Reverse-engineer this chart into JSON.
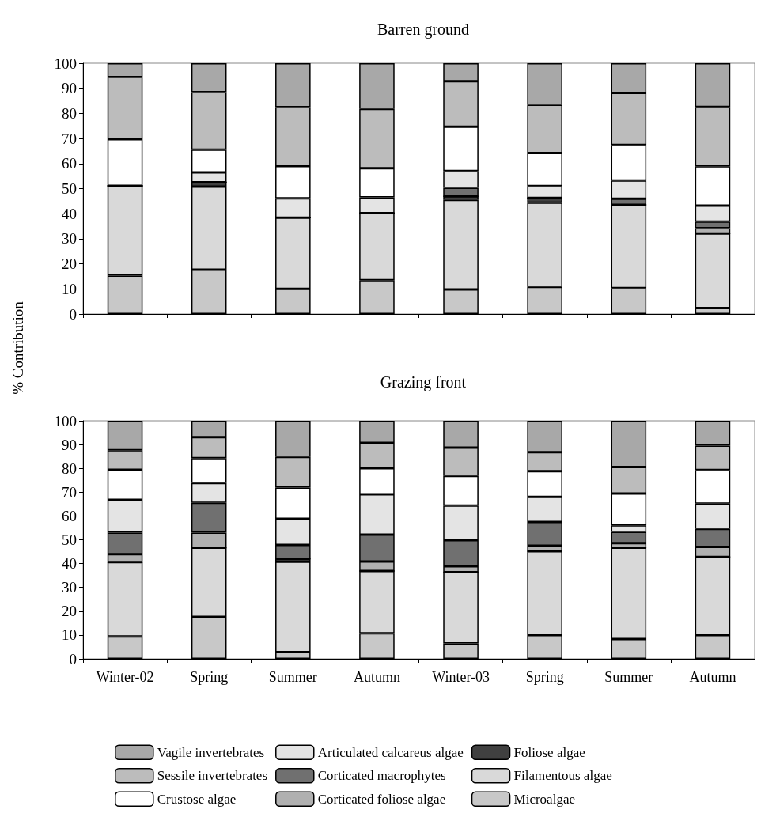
{
  "chart_data": [
    {
      "type": "bar",
      "title": "Barren ground",
      "ylabel": "% Contribution",
      "stacked": true,
      "categories": [
        null,
        null,
        null,
        null,
        null,
        null,
        null,
        null
      ],
      "ylim": [
        0,
        100
      ],
      "yticks": [
        0,
        10,
        20,
        30,
        40,
        50,
        60,
        70,
        80,
        90,
        100
      ],
      "grid": false,
      "legend": false,
      "tick_labels": "y",
      "series": [
        {
          "color": "#c8c8c8",
          "values": [
            15.3,
            17.7,
            10,
            13.5,
            9.8,
            10.8,
            10.3,
            2.4
          ]
        },
        {
          "color": "#d9d9d9",
          "values": [
            35.8,
            33.1,
            28.4,
            26.7,
            35.7,
            33.6,
            33.2,
            29.7
          ]
        },
        {
          "color": "#404040",
          "values": [
            0,
            1.7,
            0,
            0,
            1.4,
            1.9,
            0,
            0
          ]
        },
        {
          "color": "#b0b0b0",
          "values": [
            0,
            0,
            0,
            0,
            0,
            0,
            0,
            2.1
          ]
        },
        {
          "color": "#707070",
          "values": [
            0,
            0,
            0,
            0,
            3.4,
            0,
            2.5,
            2.6
          ]
        },
        {
          "color": "#e4e4e4",
          "values": [
            0,
            4,
            7.7,
            6.3,
            6.7,
            4.7,
            7.2,
            6.4
          ]
        },
        {
          "color": "#ffffff",
          "values": [
            18.6,
            9,
            12.9,
            11.6,
            17.7,
            13.2,
            14.2,
            15.7
          ]
        },
        {
          "color": "#bcbcbc",
          "values": [
            24.8,
            23,
            23.5,
            23.7,
            18.1,
            19.2,
            20.8,
            23.7
          ]
        },
        {
          "color": "#a8a8a8",
          "values": [
            5.5,
            11.5,
            17.5,
            18.2,
            7.2,
            16.6,
            11.8,
            17.4
          ]
        }
      ]
    },
    {
      "type": "bar",
      "title": "Grazing front",
      "stacked": true,
      "categories": [
        "Winter-02",
        "Spring",
        "Summer",
        "Autumn",
        "Winter-03",
        "Spring",
        "Summer",
        "Autumn"
      ],
      "ylim": [
        0,
        100
      ],
      "yticks": [
        0,
        10,
        20,
        30,
        40,
        50,
        60,
        70,
        80,
        90,
        100
      ],
      "grid": false,
      "legend": "bottom",
      "series": [
        {
          "name": "Microalgae",
          "color": "#c8c8c8",
          "values": [
            9.4,
            17.6,
            2.8,
            10.7,
            6.5,
            10,
            8.3,
            10
          ]
        },
        {
          "name": "Filamentous algae",
          "color": "#d9d9d9",
          "values": [
            31.2,
            29.1,
            38,
            26.2,
            29.9,
            35.2,
            38.4,
            32.8
          ]
        },
        {
          "name": "Foliose algae",
          "color": "#404040",
          "values": [
            0,
            0,
            1.2,
            0,
            0,
            0,
            0,
            0
          ]
        },
        {
          "name": "Corticated foliose algae",
          "color": "#b0b0b0",
          "values": [
            3.3,
            6.3,
            0,
            4,
            2.5,
            2.3,
            1.9,
            4.2
          ]
        },
        {
          "name": "Corticated macrophytes",
          "color": "#707070",
          "values": [
            9.1,
            12.5,
            5.8,
            11.3,
            10.9,
            10,
            4.7,
            7.6
          ]
        },
        {
          "name": "Articulated calcareus algae",
          "color": "#e4e4e4",
          "values": [
            13.8,
            8.3,
            11,
            16.9,
            14.6,
            10.5,
            2.8,
            10.6
          ]
        },
        {
          "name": "Crustose algae",
          "color": "#ffffff",
          "values": [
            12.6,
            10.5,
            13.1,
            11,
            12.4,
            10.8,
            13.3,
            14.1
          ]
        },
        {
          "name": "Sessile invertebrates",
          "color": "#bcbcbc",
          "values": [
            8.2,
            8.8,
            12.9,
            10.6,
            11.9,
            8,
            11.2,
            10.2
          ]
        },
        {
          "name": "Vagile invertebrates",
          "color": "#a8a8a8",
          "values": [
            12.4,
            6.9,
            15.2,
            9.3,
            11.3,
            13.2,
            19.4,
            10.5
          ]
        }
      ]
    }
  ]
}
